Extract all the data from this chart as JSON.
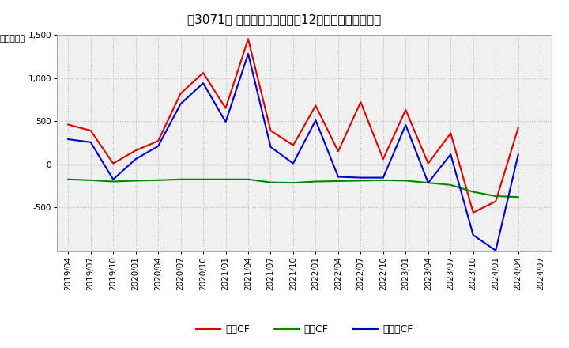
{
  "title": "［3071］ キャッシュフローの12か月移動合計の推移",
  "ylabel": "（百万円）",
  "background_color": "#ffffff",
  "plot_bg_color": "#f0f0f0",
  "grid_color": "#bbbbbb",
  "xlabels": [
    "2019/04",
    "2019/07",
    "2019/10",
    "2020/01",
    "2020/04",
    "2020/07",
    "2020/10",
    "2021/01",
    "2021/04",
    "2021/07",
    "2021/10",
    "2022/01",
    "2022/04",
    "2022/07",
    "2022/10",
    "2023/01",
    "2023/04",
    "2023/07",
    "2023/10",
    "2024/01",
    "2024/04",
    "2024/07"
  ],
  "operating_cf": [
    460,
    390,
    10,
    160,
    270,
    820,
    1060,
    650,
    1450,
    390,
    220,
    680,
    150,
    720,
    60,
    630,
    10,
    360,
    -560,
    -430,
    420,
    null
  ],
  "investing_cf": [
    -175,
    -185,
    -200,
    -190,
    -185,
    -175,
    -175,
    -175,
    -175,
    -210,
    -215,
    -200,
    -195,
    -190,
    -185,
    -190,
    -215,
    -240,
    -320,
    -370,
    -380,
    null
  ],
  "free_cf": [
    290,
    255,
    -175,
    60,
    210,
    700,
    940,
    490,
    1280,
    200,
    10,
    510,
    -145,
    -155,
    -155,
    455,
    -215,
    115,
    -820,
    -1000,
    110,
    null
  ],
  "ylim": [
    -1000,
    1500
  ],
  "yticks": [
    -500,
    0,
    500,
    1000,
    1500
  ],
  "operating_color": "#dd0000",
  "investing_color": "#008800",
  "free_color": "#0000cc",
  "line_width": 1.5,
  "title_fontsize": 11,
  "legend_fontsize": 9,
  "tick_fontsize": 7.5,
  "ylabel_fontsize": 8
}
